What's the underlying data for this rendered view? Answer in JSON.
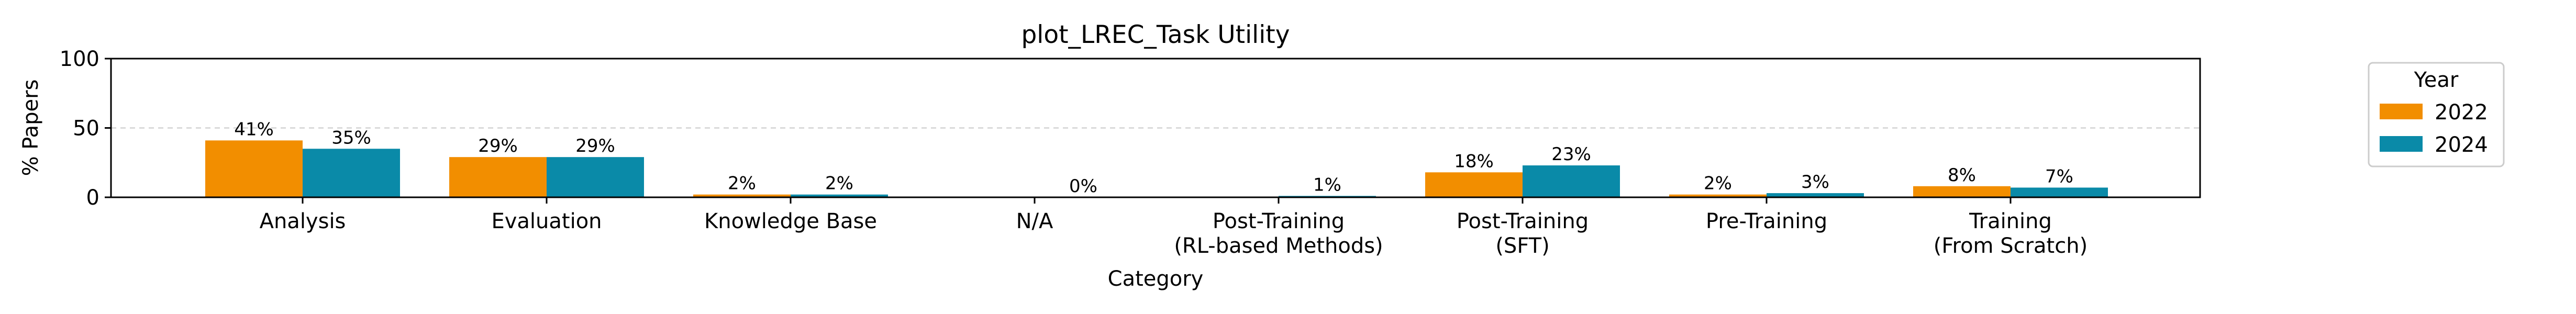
{
  "chart_data": {
    "type": "bar",
    "title": "plot_LREC_Task Utility",
    "xlabel": "Category",
    "ylabel": "% Papers",
    "ylim": [
      0,
      100
    ],
    "yticks": [
      0,
      50,
      100
    ],
    "grid": "horizontal dashed at 50",
    "categories": [
      [
        "Analysis"
      ],
      [
        "Evaluation"
      ],
      [
        "Knowledge Base"
      ],
      [
        "N/A"
      ],
      [
        "Post-Training",
        "(RL-based Methods)"
      ],
      [
        "Post-Training",
        "(SFT)"
      ],
      [
        "Pre-Training"
      ],
      [
        "Training",
        "(From Scratch)"
      ]
    ],
    "series": [
      {
        "name": "2022",
        "color": "#F28E00",
        "values": [
          41,
          29,
          2,
          null,
          null,
          18,
          2,
          8
        ],
        "labels": [
          "41%",
          "29%",
          "2%",
          "",
          "",
          "18%",
          "2%",
          "8%"
        ]
      },
      {
        "name": "2024",
        "color": "#0A8AA8",
        "values": [
          35,
          29,
          2,
          0,
          1,
          23,
          3,
          7
        ],
        "labels": [
          "35%",
          "29%",
          "2%",
          "0%",
          "1%",
          "23%",
          "3%",
          "7%"
        ]
      }
    ],
    "legend": {
      "title": "Year",
      "position": "right"
    }
  }
}
